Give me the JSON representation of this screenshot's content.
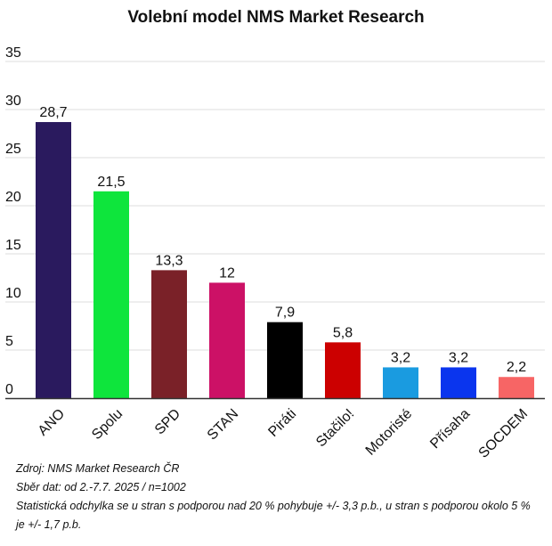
{
  "chart_data": {
    "type": "bar",
    "title": "Volební model NMS Market Research",
    "categories": [
      "ANO",
      "Spolu",
      "SPD",
      "STAN",
      "Piráti",
      "Stačilo!",
      "Motoristé",
      "Přísaha",
      "SOCDEM"
    ],
    "values": [
      28.7,
      21.5,
      13.3,
      12,
      7.9,
      5.8,
      3.2,
      3.2,
      2.2
    ],
    "value_labels": [
      "28,7",
      "21,5",
      "13,3",
      "12",
      "7,9",
      "5,8",
      "3,2",
      "3,2",
      "2,2"
    ],
    "colors": [
      "#2a1a5e",
      "#0ee53c",
      "#7a2128",
      "#cc1166",
      "#000000",
      "#cc0000",
      "#1a9be0",
      "#0a35ee",
      "#f76565"
    ],
    "yticks": [
      0,
      5,
      10,
      15,
      20,
      25,
      30,
      35
    ],
    "ylim": [
      0,
      35
    ],
    "xlabel": "",
    "ylabel": "",
    "grid": true
  },
  "notes": {
    "source": "Zdroj: NMS Market Research ČR",
    "collection": "Sběr dat: od 2.-7.7. 2025 / n=1002",
    "error": "Statistická odchylka se u stran s podporou nad 20 % pohybuje +/- 3,3 p.b., u stran s podporou okolo 5 % je +/- 1,7 p.b."
  }
}
